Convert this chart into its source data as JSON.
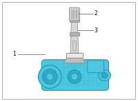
{
  "bg_color": "#ffffff",
  "border_color": "#aaaaaa",
  "border_lw": 0.7,
  "fig_w": 2.0,
  "fig_h": 1.47,
  "label_1": "1",
  "label_2": "2",
  "label_3": "3",
  "label_fontsize": 5.5,
  "sensor_color": "#4ec8e0",
  "sensor_edge": "#2090b0",
  "sensor_inner": "#30a8c8",
  "stem_color": "#d8d8d8",
  "stem_edge": "#909090",
  "stem_dark": "#b0b0b0",
  "annotation_color": "#555555",
  "annotation_lw": 0.5
}
